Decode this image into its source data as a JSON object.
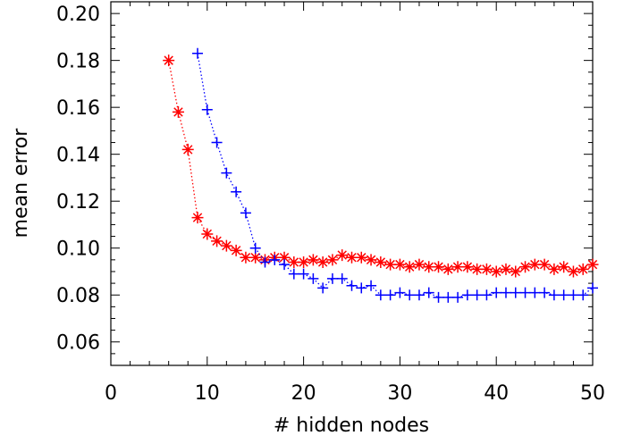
{
  "chart_data": {
    "type": "line",
    "title": "",
    "xlabel": "# hidden nodes",
    "ylabel": "mean error",
    "xlim": [
      0,
      50
    ],
    "ylim": [
      0.05,
      0.205
    ],
    "xticks": [
      0,
      10,
      20,
      30,
      40,
      50
    ],
    "xtick_labels": [
      "0",
      "10",
      "20",
      "30",
      "40",
      "50"
    ],
    "yticks": [
      0.06,
      0.08,
      0.1,
      0.12,
      0.14,
      0.16,
      0.18,
      0.2
    ],
    "ytick_labels": [
      "0.06",
      "0.08",
      "0.10",
      "0.12",
      "0.14",
      "0.16",
      "0.18",
      "0.20"
    ],
    "grid": false,
    "series": [
      {
        "marker": "asterisk",
        "line_style": "dotted",
        "color": "#ff0000",
        "x": [
          6,
          7,
          8,
          9,
          10,
          11,
          12,
          13,
          14,
          15,
          16,
          17,
          18,
          19,
          20,
          21,
          22,
          23,
          24,
          25,
          26,
          27,
          28,
          29,
          30,
          31,
          32,
          33,
          34,
          35,
          36,
          37,
          38,
          39,
          40,
          41,
          42,
          43,
          44,
          45,
          46,
          47,
          48,
          49,
          50
        ],
        "y": [
          0.18,
          0.158,
          0.142,
          0.113,
          0.106,
          0.103,
          0.101,
          0.099,
          0.096,
          0.096,
          0.095,
          0.096,
          0.096,
          0.094,
          0.094,
          0.095,
          0.094,
          0.095,
          0.097,
          0.096,
          0.096,
          0.095,
          0.094,
          0.093,
          0.093,
          0.092,
          0.093,
          0.092,
          0.092,
          0.091,
          0.092,
          0.092,
          0.091,
          0.091,
          0.09,
          0.091,
          0.09,
          0.092,
          0.093,
          0.093,
          0.091,
          0.092,
          0.09,
          0.091,
          0.093
        ]
      },
      {
        "marker": "plus",
        "line_style": "dotted",
        "color": "#0000ff",
        "x": [
          9,
          10,
          11,
          12,
          13,
          14,
          15,
          16,
          17,
          18,
          19,
          20,
          21,
          22,
          23,
          24,
          25,
          26,
          27,
          28,
          29,
          30,
          31,
          32,
          33,
          34,
          35,
          36,
          37,
          38,
          39,
          40,
          41,
          42,
          43,
          44,
          45,
          46,
          47,
          48,
          49,
          50
        ],
        "y": [
          0.183,
          0.159,
          0.145,
          0.132,
          0.124,
          0.115,
          0.1,
          0.094,
          0.095,
          0.093,
          0.089,
          0.089,
          0.087,
          0.083,
          0.087,
          0.087,
          0.084,
          0.083,
          0.084,
          0.08,
          0.08,
          0.081,
          0.08,
          0.08,
          0.081,
          0.079,
          0.079,
          0.079,
          0.08,
          0.08,
          0.08,
          0.081,
          0.081,
          0.081,
          0.081,
          0.081,
          0.081,
          0.08,
          0.08,
          0.08,
          0.08,
          0.083
        ]
      }
    ]
  }
}
